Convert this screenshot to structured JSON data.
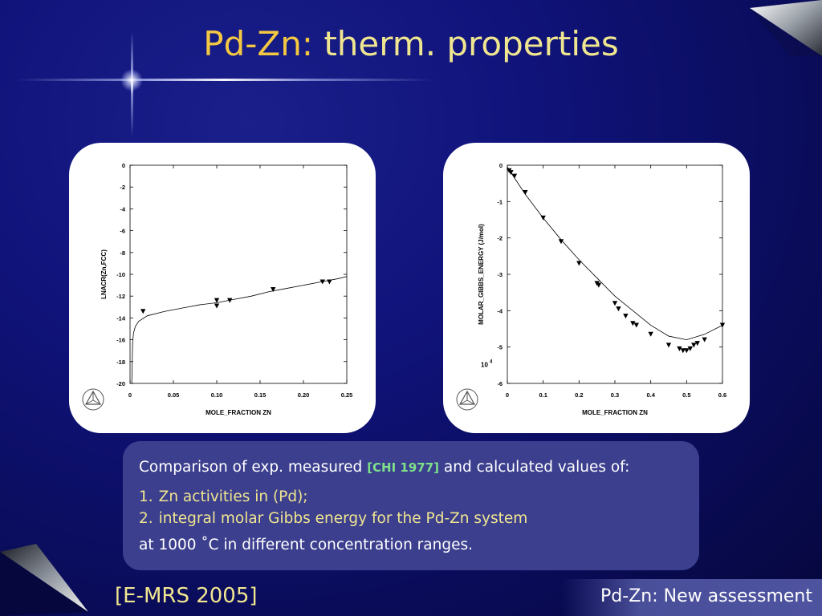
{
  "slide": {
    "title_prefix": "Pd-Zn:",
    "title_rest": " therm. properties",
    "footer_left": "[E-MRS 2005]",
    "footer_right": "Pd-Zn: New assessment"
  },
  "textbox": {
    "line1_pre": "Comparison of exp. measured ",
    "line1_ref": "[CHI 1977]",
    "line1_post": " and calculated values of:",
    "items": [
      {
        "num": "1.",
        "text": "Zn activities in (Pd);"
      },
      {
        "num": "2.",
        "text": "integral molar Gibbs energy for the Pd-Zn system"
      }
    ],
    "line3": "at 1000 ˚C in different concentration ranges."
  },
  "colors": {
    "title_pd": "#f5c842",
    "title": "#f0e690",
    "ref": "#7fe08a"
  },
  "chart_data": [
    {
      "type": "line",
      "xlabel": "MOLE_FRACTION ZN",
      "ylabel": "LNACR(Zn,FCC)",
      "xlim": [
        0,
        0.25
      ],
      "ylim": [
        -20,
        0
      ],
      "xticks": [
        0,
        0.05,
        0.1,
        0.15,
        0.2,
        0.25
      ],
      "xtick_labels": [
        "0",
        "0.05",
        "0.10",
        "0.15",
        "0.20",
        "0.25"
      ],
      "yticks": [
        0,
        -2,
        -4,
        -6,
        -8,
        -10,
        -12,
        -14,
        -16,
        -18,
        -20
      ],
      "ytick_labels": [
        "0",
        "-2",
        "-4",
        "-6",
        "-8",
        "-10",
        "-12",
        "-14",
        "-16",
        "-18",
        "-20"
      ],
      "series": [
        {
          "kind": "line",
          "x": [
            0.002,
            0.003,
            0.004,
            0.006,
            0.01,
            0.02,
            0.04,
            0.06,
            0.08,
            0.1,
            0.12,
            0.14,
            0.16,
            0.18,
            0.2,
            0.22,
            0.24,
            0.25
          ],
          "y": [
            -20,
            -16.2,
            -15.4,
            -14.8,
            -14.3,
            -13.8,
            -13.4,
            -13.1,
            -12.8,
            -12.6,
            -12.3,
            -12.0,
            -11.6,
            -11.3,
            -11.0,
            -10.7,
            -10.4,
            -10.2
          ]
        },
        {
          "kind": "scatter",
          "marker": "triangle-down",
          "x": [
            0.015,
            0.1,
            0.1,
            0.115,
            0.165,
            0.222,
            0.23
          ],
          "y": [
            -13.4,
            -12.4,
            -12.9,
            -12.4,
            -11.4,
            -10.7,
            -10.7
          ]
        }
      ]
    },
    {
      "type": "line",
      "xlabel": "MOLE_FRACTION ZN",
      "ylabel": "MOLAR_GIBBS_ENERGY (J/mol)",
      "y_scale_label": "10",
      "y_scale_exp": "4",
      "xlim": [
        0,
        0.6
      ],
      "ylim": [
        -6,
        0
      ],
      "xticks": [
        0,
        0.1,
        0.2,
        0.3,
        0.4,
        0.5,
        0.6
      ],
      "xtick_labels": [
        "0",
        "0.1",
        "0.2",
        "0.3",
        "0.4",
        "0.5",
        "0.6"
      ],
      "yticks": [
        0,
        -1,
        -2,
        -3,
        -4,
        -5,
        -6
      ],
      "ytick_labels": [
        "0",
        "-1",
        "-2",
        "-3",
        "-4",
        "-5",
        "-6"
      ],
      "series": [
        {
          "kind": "line",
          "x": [
            0,
            0.02,
            0.05,
            0.1,
            0.15,
            0.2,
            0.25,
            0.3,
            0.35,
            0.4,
            0.45,
            0.5,
            0.55,
            0.6
          ],
          "y": [
            -0.05,
            -0.35,
            -0.8,
            -1.45,
            -2.05,
            -2.6,
            -3.1,
            -3.6,
            -4.0,
            -4.4,
            -4.7,
            -4.8,
            -4.65,
            -4.4
          ]
        },
        {
          "kind": "scatter",
          "marker": "triangle-down",
          "x": [
            0.005,
            0.01,
            0.02,
            0.05,
            0.1,
            0.15,
            0.2,
            0.25,
            0.255,
            0.3,
            0.31,
            0.33,
            0.35,
            0.36,
            0.4,
            0.45,
            0.48,
            0.49,
            0.5,
            0.51,
            0.52,
            0.53,
            0.55,
            0.6
          ],
          "y": [
            -0.15,
            -0.2,
            -0.3,
            -0.75,
            -1.45,
            -2.1,
            -2.7,
            -3.25,
            -3.3,
            -3.8,
            -3.95,
            -4.15,
            -4.35,
            -4.4,
            -4.65,
            -4.95,
            -5.05,
            -5.1,
            -5.1,
            -5.05,
            -4.95,
            -4.9,
            -4.8,
            -4.4
          ]
        }
      ]
    }
  ]
}
